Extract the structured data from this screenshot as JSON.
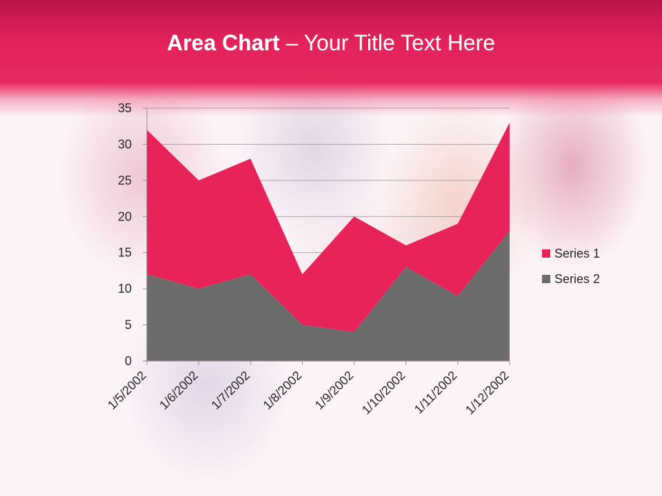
{
  "slide": {
    "title_bold": "Area Chart",
    "title_rest": " – Your Title Text Here"
  },
  "colors": {
    "series1": "#e8235a",
    "series2": "#6d6c6c",
    "header": "#e3225a"
  },
  "chart_data": {
    "type": "area",
    "stacked": true,
    "categories": [
      "1/5/2002",
      "1/6/2002",
      "1/7/2002",
      "1/8/2002",
      "1/9/2002",
      "1/10/2002",
      "1/11/2002",
      "1/12/2002"
    ],
    "series": [
      {
        "name": "Series 1",
        "values": [
          20,
          15,
          16,
          7,
          16,
          3,
          10,
          15
        ]
      },
      {
        "name": "Series 2",
        "values": [
          12,
          10,
          12,
          5,
          4,
          13,
          9,
          18
        ]
      }
    ],
    "yticks": [
      "0",
      "5",
      "10",
      "15",
      "20",
      "25",
      "30",
      "35"
    ],
    "ylim": [
      0,
      35
    ],
    "grid": true,
    "legend": "right"
  }
}
